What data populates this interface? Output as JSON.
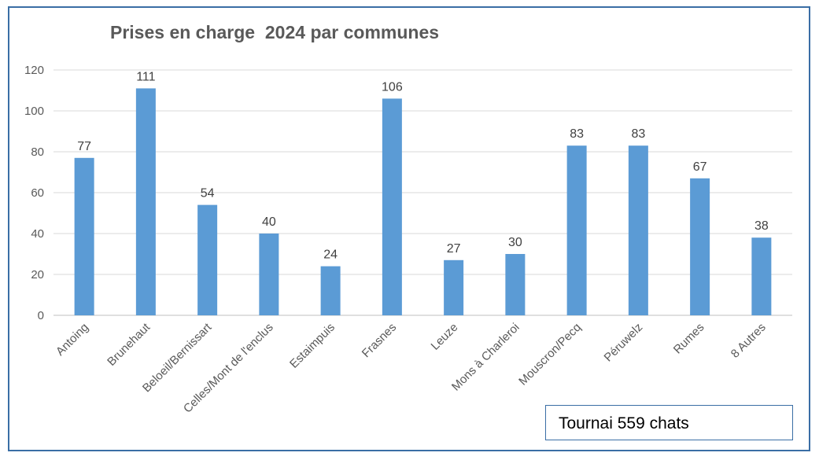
{
  "chart_data": {
    "type": "bar",
    "title": "Prises en charge  2024 par communes",
    "categories": [
      "Antoing",
      "Brunehaut",
      "Beloeil/Bernissart",
      "Celles/Mont de l'enclus",
      "Estaimpuis",
      "Frasnes",
      "Leuze",
      "Mons à Charleroi",
      "Mouscron/Pecq",
      "Péruwelz",
      "Rumes",
      "8 Autres"
    ],
    "series": [
      {
        "values": [
          77,
          111,
          54,
          40,
          24,
          106,
          27,
          30,
          83,
          83,
          67,
          38
        ]
      }
    ],
    "xlabel": "",
    "ylabel": "",
    "ylim": [
      0,
      120
    ],
    "yticks": [
      0,
      20,
      40,
      60,
      80,
      100,
      120
    ],
    "grid": true,
    "data_labels": true,
    "bar_color": "#5b9bd5",
    "grid_color": "#d9d9d9",
    "legend": "none"
  },
  "annotation": {
    "text": "Tournai 559 chats"
  },
  "colors": {
    "frame_border": "#3a6ea5",
    "title": "#595959"
  }
}
